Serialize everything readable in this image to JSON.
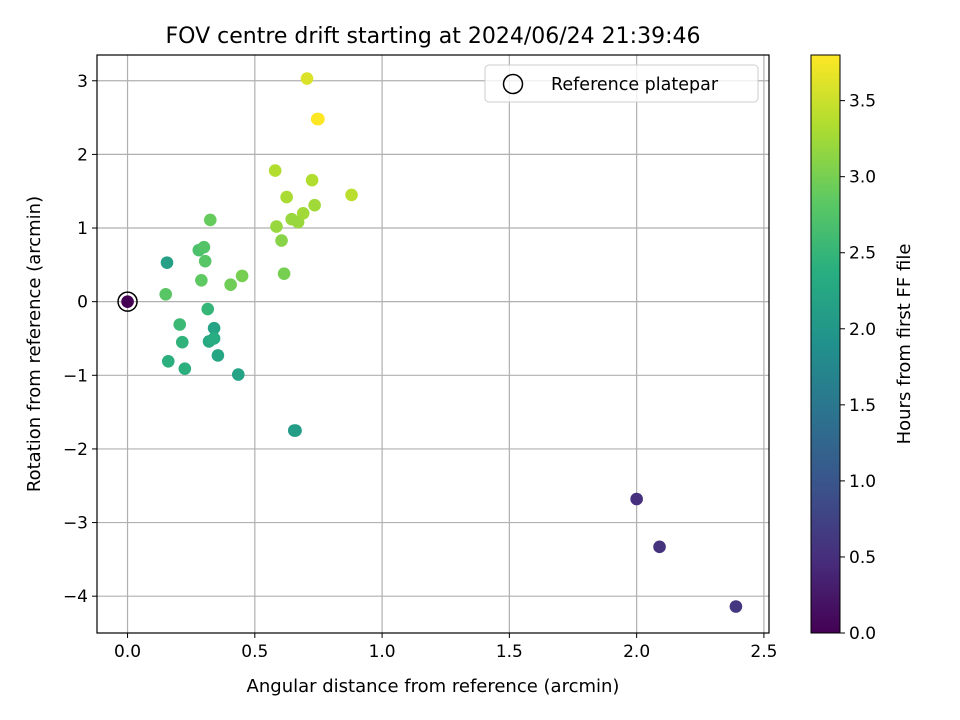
{
  "chart_data": {
    "type": "scatter",
    "title": "FOV centre drift starting at 2024/06/24 21:39:46",
    "xlabel": "Angular distance from reference (arcmin)",
    "ylabel": "Rotation from reference (arcmin)",
    "xlim": [
      -0.12,
      2.52
    ],
    "ylim": [
      -4.5,
      3.35
    ],
    "xticks": [
      0.0,
      0.5,
      1.0,
      1.5,
      2.0,
      2.5
    ],
    "yticks": [
      -4,
      -3,
      -2,
      -1,
      0,
      1,
      2,
      3
    ],
    "xtick_labels": [
      "0.0",
      "0.5",
      "1.0",
      "1.5",
      "2.0",
      "2.5"
    ],
    "ytick_labels": [
      "−4",
      "−3",
      "−2",
      "−1",
      "0",
      "1",
      "2",
      "3"
    ],
    "grid": true,
    "colormap": "viridis",
    "colorbar": {
      "label": "Hours from first FF file",
      "range": [
        0.0,
        3.8
      ],
      "ticks": [
        0.0,
        0.5,
        1.0,
        1.5,
        2.0,
        2.5,
        3.0,
        3.5
      ],
      "tick_labels": [
        "0.0",
        "0.5",
        "1.0",
        "1.5",
        "2.0",
        "2.5",
        "3.0",
        "3.5"
      ]
    },
    "legend": {
      "placement": "top-right",
      "label": "Reference platepar"
    },
    "reference_point": {
      "x": 0.0,
      "y": 0.0
    },
    "points": [
      {
        "x": 0.0,
        "y": 0.0,
        "hours": 0.0
      },
      {
        "x": 2.0,
        "y": -2.68,
        "hours": 0.5
      },
      {
        "x": 2.09,
        "y": -3.33,
        "hours": 0.55
      },
      {
        "x": 2.39,
        "y": -4.14,
        "hours": 0.6
      },
      {
        "x": 0.655,
        "y": -1.75,
        "hours": 2.05
      },
      {
        "x": 0.66,
        "y": -1.75,
        "hours": 2.1
      },
      {
        "x": 0.155,
        "y": 0.53,
        "hours": 2.15
      },
      {
        "x": 0.435,
        "y": -0.99,
        "hours": 2.2
      },
      {
        "x": 0.34,
        "y": -0.36,
        "hours": 2.2
      },
      {
        "x": 0.355,
        "y": -0.73,
        "hours": 2.25
      },
      {
        "x": 0.32,
        "y": -0.54,
        "hours": 2.3
      },
      {
        "x": 0.34,
        "y": -0.5,
        "hours": 2.35
      },
      {
        "x": 0.16,
        "y": -0.81,
        "hours": 2.4
      },
      {
        "x": 0.225,
        "y": -0.91,
        "hours": 2.4
      },
      {
        "x": 0.215,
        "y": -0.55,
        "hours": 2.45
      },
      {
        "x": 0.315,
        "y": -0.1,
        "hours": 2.5
      },
      {
        "x": 0.205,
        "y": -0.31,
        "hours": 2.55
      },
      {
        "x": 0.28,
        "y": 0.7,
        "hours": 2.7
      },
      {
        "x": 0.3,
        "y": 0.74,
        "hours": 2.75
      },
      {
        "x": 0.305,
        "y": 0.55,
        "hours": 2.8
      },
      {
        "x": 0.15,
        "y": 0.1,
        "hours": 2.8
      },
      {
        "x": 0.29,
        "y": 0.29,
        "hours": 2.85
      },
      {
        "x": 0.325,
        "y": 1.11,
        "hours": 2.9
      },
      {
        "x": 0.405,
        "y": 0.23,
        "hours": 2.95
      },
      {
        "x": 0.45,
        "y": 0.35,
        "hours": 3.0
      },
      {
        "x": 0.615,
        "y": 0.38,
        "hours": 3.0
      },
      {
        "x": 0.605,
        "y": 0.83,
        "hours": 3.1
      },
      {
        "x": 0.585,
        "y": 1.02,
        "hours": 3.2
      },
      {
        "x": 0.645,
        "y": 1.12,
        "hours": 3.2
      },
      {
        "x": 0.67,
        "y": 1.08,
        "hours": 3.2
      },
      {
        "x": 0.69,
        "y": 1.2,
        "hours": 3.25
      },
      {
        "x": 0.735,
        "y": 1.31,
        "hours": 3.25
      },
      {
        "x": 0.625,
        "y": 1.42,
        "hours": 3.3
      },
      {
        "x": 0.725,
        "y": 1.65,
        "hours": 3.35
      },
      {
        "x": 0.58,
        "y": 1.78,
        "hours": 3.35
      },
      {
        "x": 0.88,
        "y": 1.45,
        "hours": 3.4
      },
      {
        "x": 0.705,
        "y": 3.03,
        "hours": 3.6
      },
      {
        "x": 0.75,
        "y": 2.48,
        "hours": 3.8
      },
      {
        "x": 0.745,
        "y": 2.48,
        "hours": 3.8
      }
    ]
  }
}
